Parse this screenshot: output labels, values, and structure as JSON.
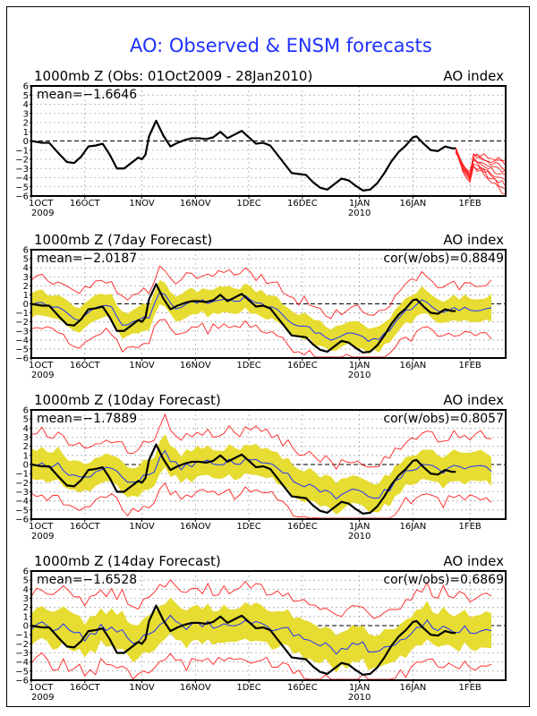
{
  "page_title": "AO: Observed & ENSM forecasts",
  "chart_data": [
    {
      "type": "line",
      "title": "1000mb Z (Obs: 01Oct2009 - 28Jan2010)",
      "right_label": "AO index",
      "mean_label": "mean=-1.6646",
      "cor_label": "",
      "ylim": [
        -6,
        6
      ],
      "yticks": [
        -6,
        -5,
        -4,
        -3,
        -2,
        -1,
        0,
        1,
        2,
        3,
        4,
        5,
        6
      ],
      "xticks": [
        {
          "day": 0,
          "label": "1OCT",
          "sub": "2009"
        },
        {
          "day": 15,
          "label": "16OCT",
          "sub": ""
        },
        {
          "day": 31,
          "label": "1NOV",
          "sub": ""
        },
        {
          "day": 46,
          "label": "16NOV",
          "sub": ""
        },
        {
          "day": 61,
          "label": "1DEC",
          "sub": ""
        },
        {
          "day": 76,
          "label": "16DEC",
          "sub": ""
        },
        {
          "day": 92,
          "label": "1JAN",
          "sub": "2010"
        },
        {
          "day": 107,
          "label": "16JAN",
          "sub": ""
        },
        {
          "day": 123,
          "label": "1FEB",
          "sub": ""
        }
      ],
      "xlim_days": [
        0,
        133
      ],
      "grid": true,
      "series": [
        {
          "name": "observed",
          "color": "#000000",
          "x": [
            0,
            3,
            5,
            8,
            10,
            12,
            14,
            16,
            18,
            20,
            22,
            24,
            26,
            28,
            30,
            31,
            32,
            33,
            35,
            37,
            39,
            41,
            43,
            45,
            47,
            49,
            51,
            53,
            55,
            57,
            59,
            61,
            63,
            65,
            67,
            69,
            71,
            73,
            75,
            77,
            79,
            81,
            83,
            85,
            87,
            89,
            91,
            93,
            95,
            97,
            99,
            101,
            103,
            105,
            107,
            108,
            110,
            112,
            114,
            116,
            118,
            119
          ],
          "y": [
            0,
            -0.2,
            -0.2,
            -1.5,
            -2.3,
            -2.4,
            -1.7,
            -0.6,
            -0.5,
            -0.3,
            -1.5,
            -3.0,
            -3.0,
            -2.4,
            -1.8,
            -2.0,
            -1.5,
            0.5,
            2.2,
            0.6,
            -0.6,
            -0.2,
            0.1,
            0.3,
            0.3,
            0.2,
            0.4,
            1.0,
            0.3,
            0.7,
            1.1,
            0.4,
            -0.3,
            -0.2,
            -0.5,
            -1.5,
            -2.5,
            -3.5,
            -3.6,
            -3.7,
            -4.5,
            -5.1,
            -5.3,
            -4.7,
            -4.1,
            -4.3,
            -4.9,
            -5.4,
            -5.3,
            -4.6,
            -3.5,
            -2.2,
            -1.2,
            -0.5,
            0.4,
            0.5,
            -0.3,
            -1.0,
            -1.1,
            -0.6,
            -0.8,
            -0.8
          ]
        },
        {
          "name": "ensemble-members",
          "color": "#ff2020",
          "start_day": 119,
          "end_day": 133,
          "values_start": -1.0,
          "values_end_range": [
            -5.8,
            -2.0
          ]
        }
      ]
    },
    {
      "type": "line",
      "title": "1000mb Z (7day Forecast)",
      "right_label": "AO index",
      "mean_label": "mean=-2.0187",
      "cor_label": "cor(w/obs)=0.8849",
      "ylim": [
        -6,
        6
      ],
      "lead_days": 7
    },
    {
      "type": "line",
      "title": "1000mb Z (10day Forecast)",
      "right_label": "AO index",
      "mean_label": "mean=-1.7889",
      "cor_label": "cor(w/obs)=0.8057",
      "ylim": [
        -6,
        6
      ],
      "lead_days": 10
    },
    {
      "type": "line",
      "title": "1000mb Z (14day Forecast)",
      "right_label": "AO index",
      "mean_label": "mean=-1.6528",
      "cor_label": "cor(w/obs)=0.6869",
      "ylim": [
        -6,
        6
      ],
      "lead_days": 14
    }
  ],
  "legend_colors": {
    "observed": "#000000",
    "ensemble_mean": "#1e32ff",
    "spread_band": "#e6dc32",
    "min_max": "#ff2020"
  }
}
